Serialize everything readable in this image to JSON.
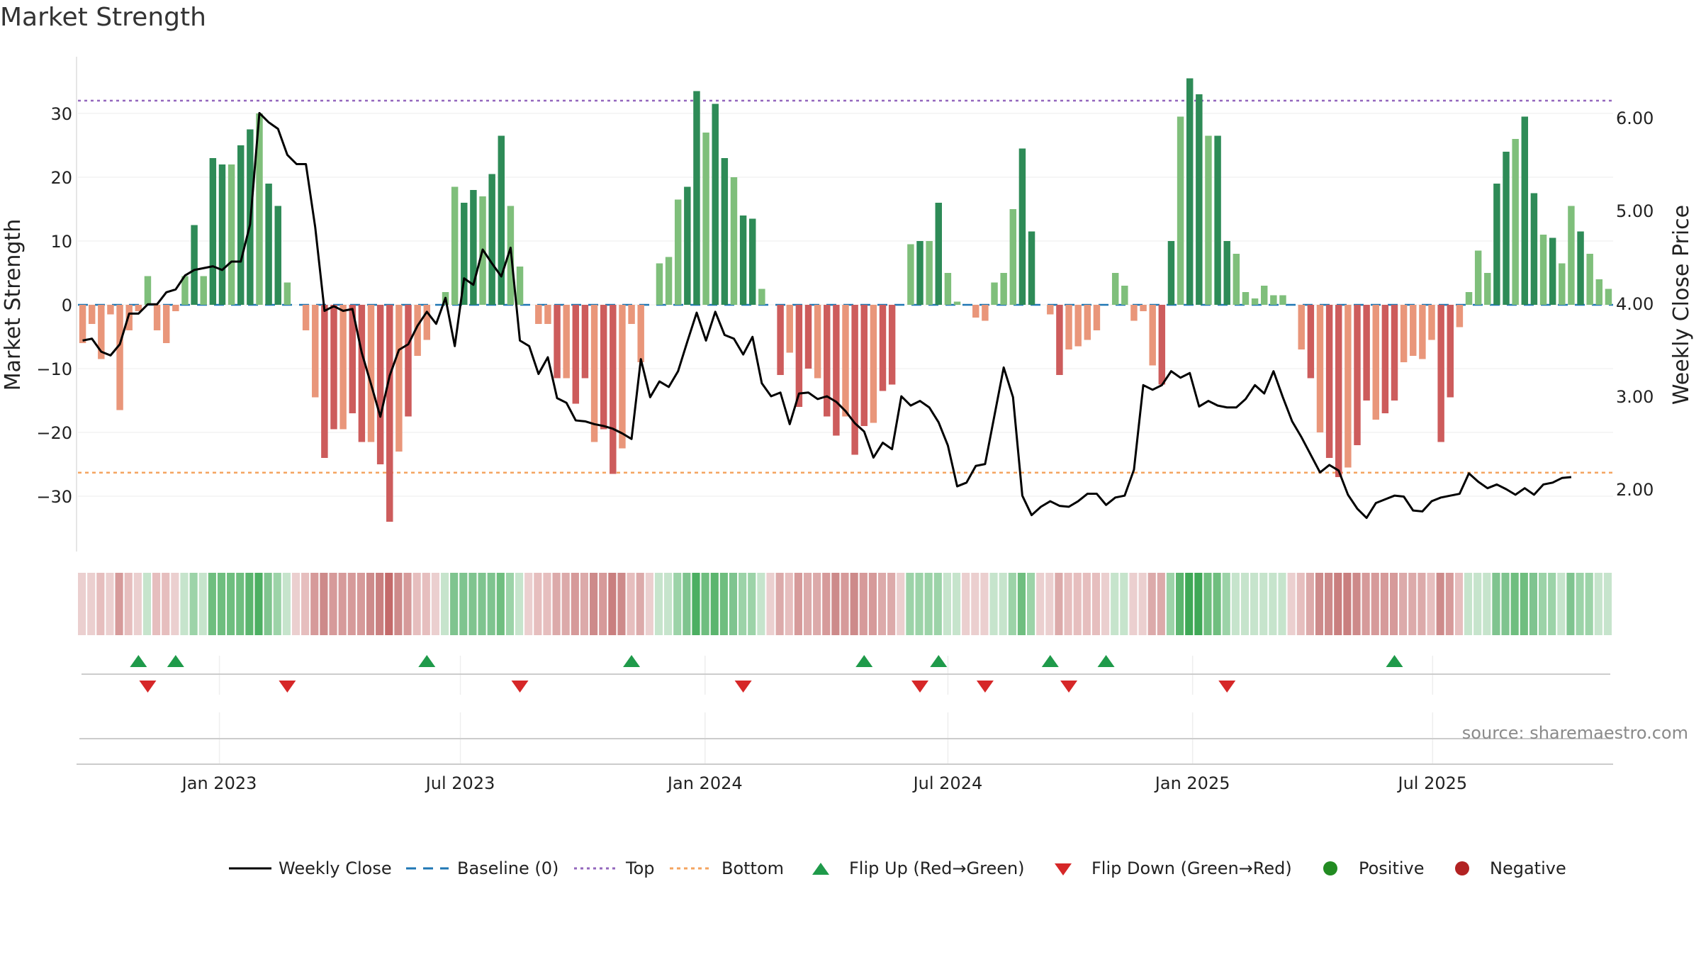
{
  "title": "Market Strength",
  "source": "source: sharemaestro.com",
  "colors": {
    "green_dark": "#2e8b57",
    "green_light": "#7fbf7b",
    "red_dark": "#cd5c5c",
    "red_light": "#e9967a",
    "line": "#000000",
    "baseline": "#1f77b4",
    "top": "#9467bd",
    "bottom": "#f4a460",
    "flip_up": "#1f9a4a",
    "flip_down": "#d62728",
    "positive": "#228b22",
    "negative": "#b22222"
  },
  "chart_data": {
    "type": "bar",
    "title": "Market Strength",
    "ylabel": "Market Strength",
    "y2label": "Weekly Close Price",
    "ylim": [
      -38,
      38
    ],
    "y2lim": [
      1.3,
      6.7
    ],
    "yticks": [
      -30,
      -20,
      -10,
      0,
      10,
      20,
      30
    ],
    "yticklabels": [
      "−30",
      "−20",
      "−10",
      "0",
      "10",
      "20",
      "30"
    ],
    "y2ticks": [
      2,
      3,
      4,
      5,
      6
    ],
    "y2ticklabels": [
      "2.00",
      "3.00",
      "4.00",
      "5.00",
      "6.00"
    ],
    "xticklabels": [
      "Jan 2023",
      "Jul 2023",
      "Jan 2024",
      "Jul 2024",
      "Jan 2025",
      "Jul 2025"
    ],
    "xtick_weeks": [
      14.7,
      40.6,
      66.9,
      93.0,
      119.3,
      145.1
    ],
    "top_line": 32,
    "bottom_line": -26.3,
    "strength": [
      -6,
      -3,
      -8.5,
      -1.5,
      -16.5,
      -4,
      -1,
      4.5,
      -4,
      -6,
      -1,
      4.5,
      12.5,
      4.5,
      23,
      22,
      22,
      25,
      27.5,
      30,
      19,
      15.5,
      3.5,
      0,
      -4,
      -14.5,
      -24,
      -19.5,
      -19.5,
      -17,
      -21.5,
      -21.5,
      -25,
      -34,
      -23,
      -17.5,
      -8,
      -5.5,
      0,
      2,
      18.5,
      16,
      18,
      17,
      20.5,
      26.5,
      15.5,
      6,
      0,
      -3,
      -3,
      -11.5,
      -11.5,
      -15.5,
      -11.5,
      -21.5,
      -19.5,
      -26.5,
      -22.5,
      -3,
      -9,
      0,
      6.5,
      7.5,
      16.5,
      18.5,
      33.5,
      27,
      31.5,
      23,
      20,
      14,
      13.5,
      2.5,
      0,
      -11,
      -7.5,
      -16,
      -10,
      -11.5,
      -17.5,
      -20.5,
      -17.5,
      -23.5,
      -19,
      -18.5,
      -13.5,
      -12.5,
      0,
      9.5,
      10,
      10,
      16,
      5,
      0.5,
      0,
      -2,
      -2.5,
      3.5,
      5,
      15,
      24.5,
      11.5,
      0,
      -1.5,
      -11,
      -7,
      -6.5,
      -5.5,
      -4,
      0,
      5,
      3,
      -2.5,
      -1,
      -9.5,
      -12.5,
      10,
      29.5,
      35.5,
      33,
      26.5,
      26.5,
      10,
      8,
      2,
      1,
      3,
      1.5,
      1.5,
      0,
      -7,
      -11.5,
      -20,
      -24,
      -27,
      -25.5,
      -22,
      -15,
      -18,
      -17,
      -15,
      -9,
      -8,
      -8.5,
      -5.5,
      -21.5,
      -14.5,
      -3.5,
      2,
      8.5,
      5,
      19,
      24,
      26,
      29.5,
      17.5,
      11,
      10.5,
      6.5,
      15.5,
      11.5,
      8,
      4,
      2.5
    ],
    "close": [
      3.6,
      3.62,
      3.48,
      3.44,
      3.56,
      3.89,
      3.89,
      3.99,
      3.99,
      4.12,
      4.15,
      4.3,
      4.36,
      4.38,
      4.4,
      4.36,
      4.45,
      4.45,
      4.85,
      6.05,
      5.95,
      5.88,
      5.6,
      5.5,
      5.5,
      4.82,
      3.92,
      3.97,
      3.92,
      3.94,
      3.47,
      3.13,
      2.78,
      3.22,
      3.5,
      3.56,
      3.76,
      3.91,
      3.78,
      4.06,
      3.54,
      4.27,
      4.2,
      4.58,
      4.43,
      4.29,
      4.6,
      3.6,
      3.54,
      3.24,
      3.42,
      2.98,
      2.93,
      2.74,
      2.73,
      2.7,
      2.68,
      2.65,
      2.6,
      2.54,
      3.4,
      2.99,
      3.16,
      3.1,
      3.27,
      3.59,
      3.9,
      3.6,
      3.91,
      3.66,
      3.62,
      3.45,
      3.64,
      3.14,
      3.0,
      3.04,
      2.7,
      3.03,
      3.04,
      2.97,
      3.0,
      2.94,
      2.84,
      2.71,
      2.62,
      2.34,
      2.5,
      2.43,
      3.0,
      2.9,
      2.95,
      2.88,
      2.72,
      2.47,
      2.03,
      2.07,
      2.25,
      2.27,
      2.79,
      3.31,
      2.99,
      1.93,
      1.72,
      1.81,
      1.87,
      1.82,
      1.81,
      1.87,
      1.95,
      1.95,
      1.83,
      1.91,
      1.93,
      2.21,
      3.12,
      3.07,
      3.12,
      3.27,
      3.2,
      3.25,
      2.89,
      2.95,
      2.9,
      2.88,
      2.88,
      2.97,
      3.12,
      3.03,
      3.27,
      2.99,
      2.73,
      2.56,
      2.37,
      2.18,
      2.26,
      2.2,
      1.94,
      1.79,
      1.69,
      1.85,
      1.89,
      1.93,
      1.92,
      1.77,
      1.76,
      1.87,
      1.91,
      1.93,
      1.95,
      2.17,
      2.08,
      2.01,
      2.05,
      2.0,
      1.94,
      2.01,
      1.94,
      2.05,
      2.07,
      2.12,
      2.13
    ],
    "heat_colors": [
      "#ebcfcf",
      "#ebcfcf",
      "#e6bebe",
      "#ebcfcf",
      "#d69a9a",
      "#e6bebe",
      "#ebcfcf",
      "#c6e4cc",
      "#e6bebe",
      "#e6bebe",
      "#ebcfcf",
      "#c6e4cc",
      "#9cd3a8",
      "#c6e4cc",
      "#6fbe7f",
      "#6fbe7f",
      "#6fbe7f",
      "#6fbe7f",
      "#5bb56e",
      "#4caf62",
      "#7fc48f",
      "#9cd3a8",
      "#c6e4cc",
      "#ebcfcf",
      "#e6bebe",
      "#d69a9a",
      "#cd8a8a",
      "#d69a9a",
      "#d69a9a",
      "#d69a9a",
      "#d69a9a",
      "#cd8a8a",
      "#c97f7f",
      "#c46a6a",
      "#cd8a8a",
      "#d69a9a",
      "#e6bebe",
      "#e6bebe",
      "#ebcfcf",
      "#c6e4cc",
      "#7fc48f",
      "#7fc48f",
      "#7fc48f",
      "#7fc48f",
      "#7fc48f",
      "#6fbe7f",
      "#9cd3a8",
      "#c6e4cc",
      "#ebcfcf",
      "#e6bebe",
      "#e6bebe",
      "#dcaaaa",
      "#dcaaaa",
      "#d69a9a",
      "#dcaaaa",
      "#cd8a8a",
      "#d69a9a",
      "#c97f7f",
      "#cd8a8a",
      "#e6bebe",
      "#dcaaaa",
      "#ebcfcf",
      "#c6e4cc",
      "#c6e4cc",
      "#9cd3a8",
      "#7fc48f",
      "#4caf62",
      "#6fbe7f",
      "#5bb56e",
      "#6fbe7f",
      "#7fc48f",
      "#9cd3a8",
      "#9cd3a8",
      "#c6e4cc",
      "#ebcfcf",
      "#dcaaaa",
      "#e6bebe",
      "#d69a9a",
      "#dcaaaa",
      "#dcaaaa",
      "#d69a9a",
      "#cd8a8a",
      "#d69a9a",
      "#cd8a8a",
      "#d69a9a",
      "#d69a9a",
      "#dcaaaa",
      "#dcaaaa",
      "#ebcfcf",
      "#9cd3a8",
      "#9cd3a8",
      "#9cd3a8",
      "#9cd3a8",
      "#c6e4cc",
      "#c6e4cc",
      "#ebcfcf",
      "#ebcfcf",
      "#ebcfcf",
      "#c6e4cc",
      "#c6e4cc",
      "#9cd3a8",
      "#6fbe7f",
      "#9cd3a8",
      "#ebcfcf",
      "#ebcfcf",
      "#dcaaaa",
      "#e6bebe",
      "#e6bebe",
      "#e6bebe",
      "#e6bebe",
      "#ebcfcf",
      "#c6e4cc",
      "#c6e4cc",
      "#ebcfcf",
      "#ebcfcf",
      "#dcaaaa",
      "#dcaaaa",
      "#9cd3a8",
      "#5bb56e",
      "#3fa856",
      "#3fa856",
      "#6fbe7f",
      "#6fbe7f",
      "#9cd3a8",
      "#c6e4cc",
      "#c6e4cc",
      "#c6e4cc",
      "#c6e4cc",
      "#c6e4cc",
      "#c6e4cc",
      "#ebcfcf",
      "#e6bebe",
      "#dcaaaa",
      "#cd8a8a",
      "#cd8a8a",
      "#c97f7f",
      "#c97f7f",
      "#cd8a8a",
      "#d69a9a",
      "#d69a9a",
      "#d69a9a",
      "#d69a9a",
      "#dcaaaa",
      "#dcaaaa",
      "#dcaaaa",
      "#e6bebe",
      "#cd8a8a",
      "#d69a9a",
      "#e6bebe",
      "#c6e4cc",
      "#c6e4cc",
      "#c6e4cc",
      "#7fc48f",
      "#7fc48f",
      "#6fbe7f",
      "#6fbe7f",
      "#7fc48f",
      "#9cd3a8",
      "#9cd3a8",
      "#c6e4cc",
      "#7fc48f",
      "#9cd3a8",
      "#9cd3a8",
      "#c6e4cc",
      "#c6e4cc"
    ],
    "flip_up_weeks": [
      6,
      10,
      37,
      59,
      84,
      92,
      104,
      110,
      141
    ],
    "flip_down_weeks": [
      7,
      22,
      47,
      71,
      90,
      97,
      106,
      123
    ],
    "legend": [
      "Weekly Close",
      "Baseline (0)",
      "Top",
      "Bottom",
      "Flip Up (Red→Green)",
      "Flip Down (Green→Red)",
      "Positive",
      "Negative"
    ]
  }
}
